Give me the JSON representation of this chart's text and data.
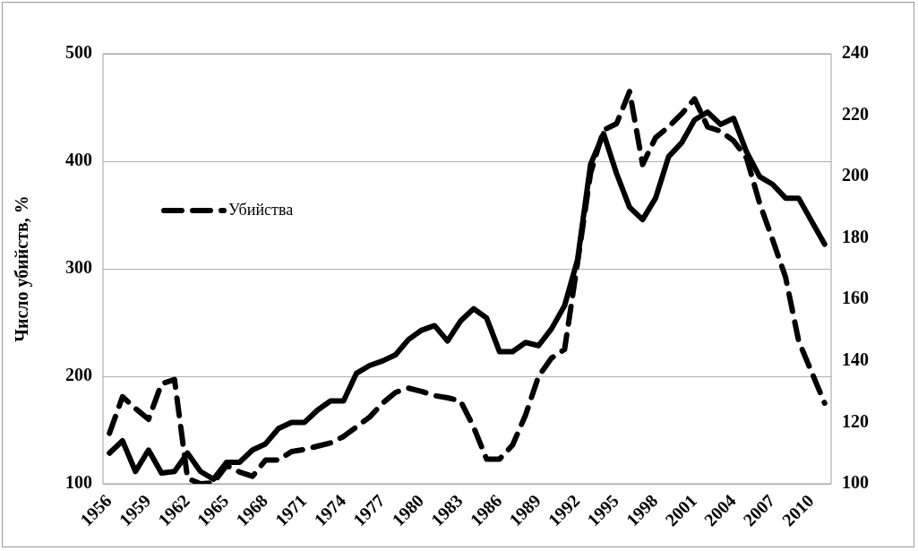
{
  "chart_data": {
    "type": "line",
    "ylabel": "Число убийств, %",
    "categories": [
      "1956",
      null,
      null,
      "1959",
      null,
      null,
      "1962",
      null,
      null,
      "1965",
      null,
      null,
      "1968",
      null,
      null,
      "1971",
      null,
      null,
      "1974",
      null,
      null,
      "1977",
      null,
      null,
      "1980",
      null,
      null,
      "1983",
      null,
      null,
      "1986",
      null,
      null,
      "1989",
      null,
      null,
      "1992",
      null,
      null,
      "1995",
      null,
      null,
      "1998",
      null,
      null,
      "2001",
      null,
      null,
      "2004",
      null,
      null,
      "2007",
      null,
      null,
      "2010",
      null
    ],
    "series": [
      {
        "name": "Убийства",
        "color": "#000000",
        "line_style": "dashed",
        "values": [
          147,
          181,
          170,
          160,
          193,
          197,
          105,
          100,
          101,
          117,
          111,
          107,
          122,
          122,
          130,
          132,
          135,
          138,
          144,
          153,
          162,
          175,
          185,
          189,
          186,
          182,
          180,
          177,
          153,
          123,
          123,
          136,
          164,
          200,
          217,
          225,
          306,
          389,
          429,
          435,
          465,
          397,
          422,
          432,
          444,
          458,
          432,
          428,
          419,
          403,
          361,
          327,
          292,
          233,
          204,
          175
        ]
      },
      {
        "color": "#000000",
        "axis": "y2",
        "line_style": "solid",
        "values": [
          110,
          114,
          104,
          111,
          103.5,
          104,
          110,
          104,
          101.5,
          107,
          107,
          111,
          113,
          118,
          120,
          120,
          124,
          127,
          127,
          136,
          138.5,
          140,
          142,
          147,
          150,
          151.5,
          146.5,
          153,
          157,
          154,
          143,
          143,
          146,
          145,
          150.5,
          158,
          173,
          204,
          214,
          201,
          190,
          186,
          193,
          206.5,
          211,
          218.5,
          221,
          217,
          219,
          208,
          200,
          197.5,
          193,
          193,
          185.5,
          178
        ]
      }
    ],
    "ylim": [
      100,
      500
    ],
    "yticks": [
      100,
      200,
      300,
      400,
      500
    ],
    "y2lim": [
      100,
      240
    ],
    "y2ticks": [
      100,
      120,
      140,
      160,
      180,
      200,
      220,
      240
    ],
    "grid": "y",
    "legend": "top left",
    "marker": "none"
  }
}
